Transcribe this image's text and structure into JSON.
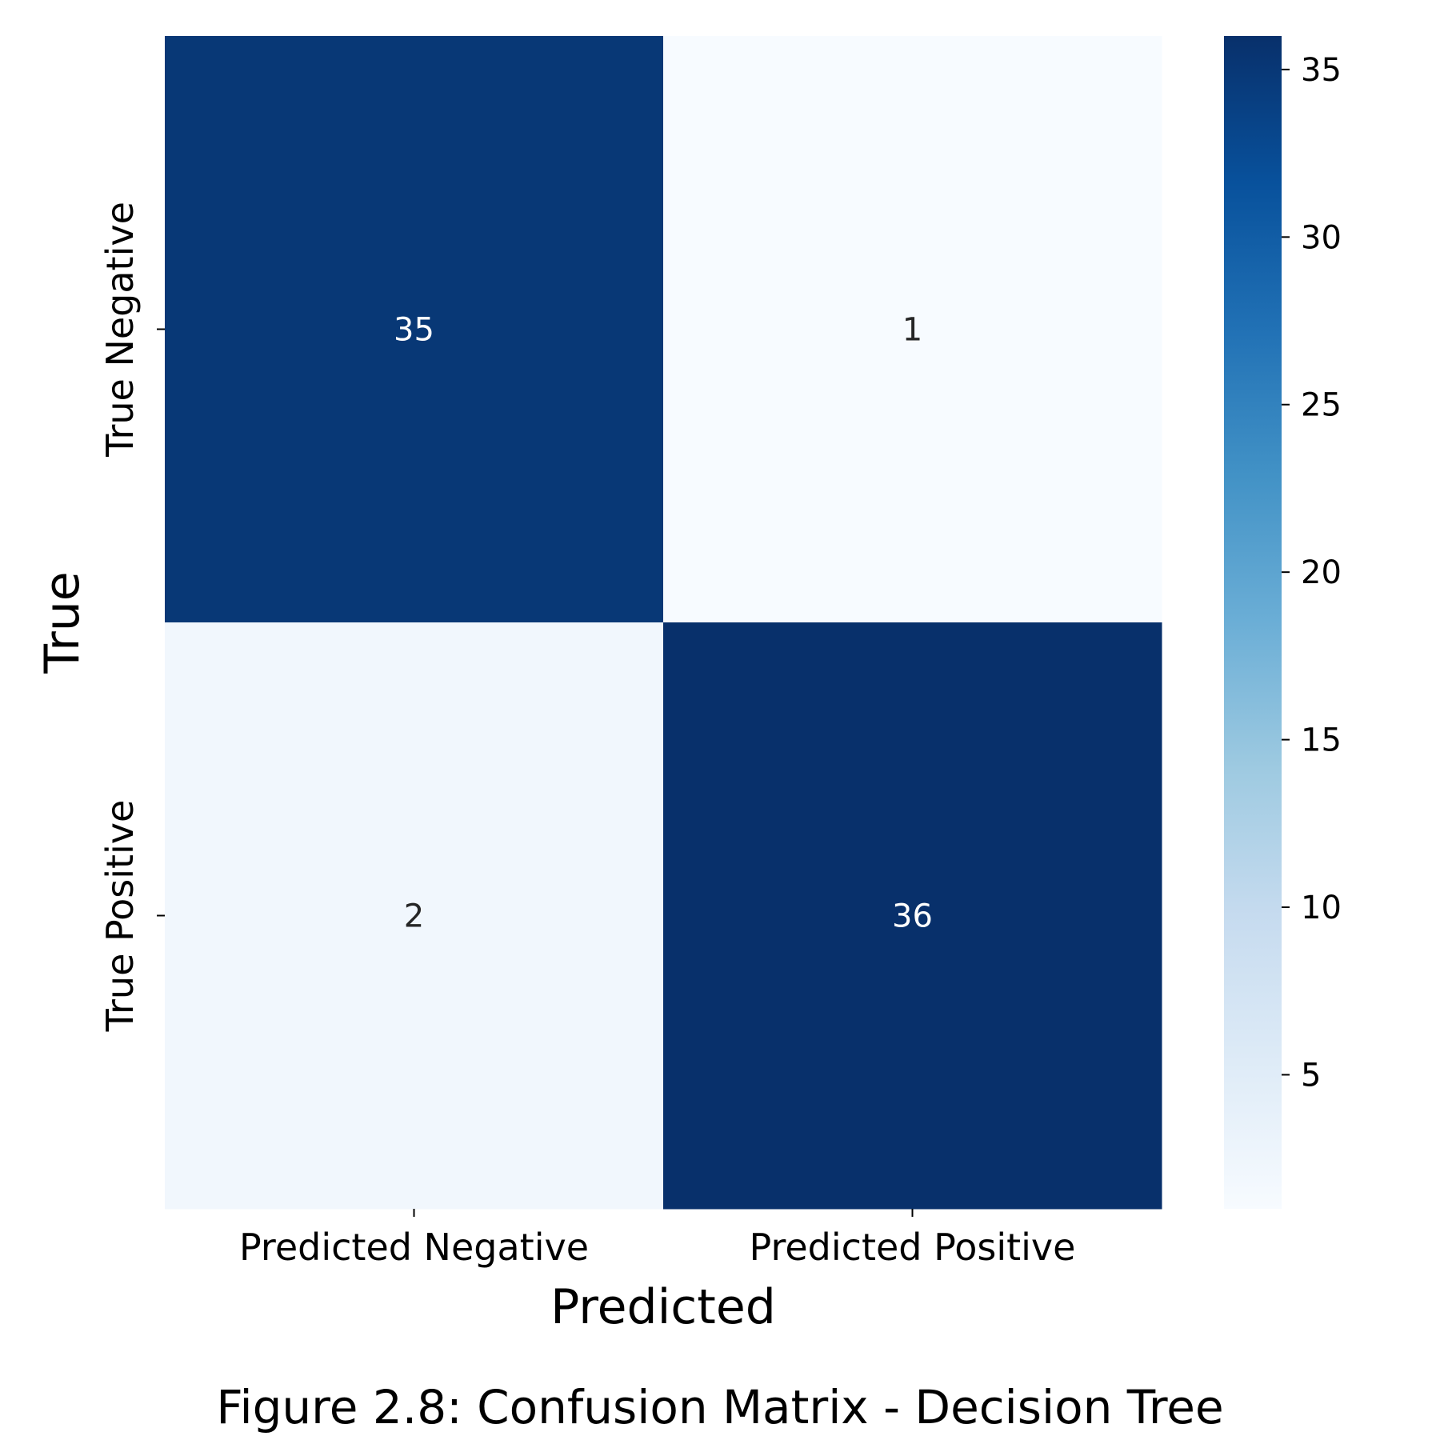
{
  "chart_data": {
    "type": "heatmap",
    "title": "",
    "xlabel": "Predicted",
    "ylabel": "True",
    "x_categories": [
      "Predicted Negative",
      "Predicted Positive"
    ],
    "y_categories": [
      "True Negative",
      "True Positive"
    ],
    "values": [
      [
        35,
        1
      ],
      [
        2,
        36
      ]
    ],
    "colormap": "Blues",
    "colorbar": {
      "min": 1,
      "max": 36,
      "ticks": [
        5,
        10,
        15,
        20,
        25,
        30,
        35
      ]
    },
    "annotation_colors": {
      "dark_cell_text": "#ffffff",
      "light_cell_text": "#262626"
    }
  },
  "caption": "Figure 2.8: Confusion Matrix - Decision Tree"
}
